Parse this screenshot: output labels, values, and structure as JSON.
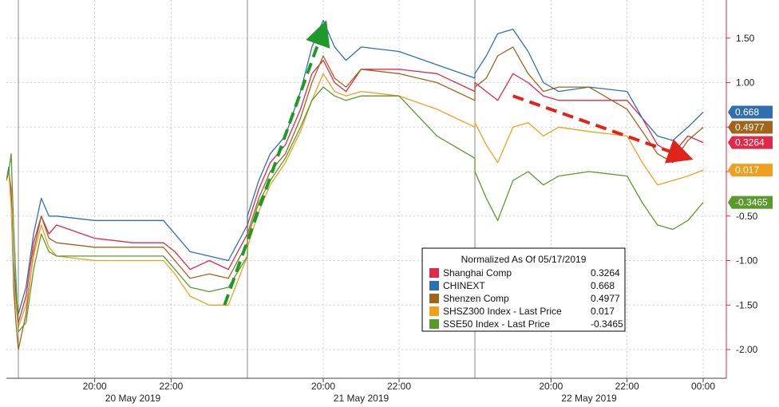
{
  "chart_data": {
    "type": "line",
    "title": "",
    "xlabel": "",
    "ylabel": "",
    "ylim": [
      -2.4,
      1.9
    ],
    "grid": true,
    "y_ticks": [
      1.5,
      1.0,
      0.5,
      0.0,
      -0.5,
      -1.0,
      -1.5,
      -2.0
    ],
    "y_tick_labels": [
      "1.50",
      "1.00",
      "",
      "",
      "-0.50",
      "-1.00",
      "-1.50",
      "-2.00"
    ],
    "x_time_ticks": [
      {
        "label": "20:00",
        "t": 11
      },
      {
        "label": "22:00",
        "t": 13
      },
      {
        "label": "20:00",
        "t": 35
      },
      {
        "label": "22:00",
        "t": 37
      },
      {
        "label": "20:00",
        "t": 59
      },
      {
        "label": "22:00",
        "t": 61
      },
      {
        "label": "00:00",
        "t": 63
      }
    ],
    "day_labels": [
      {
        "label": "20 May 2019",
        "t_start": 9.0,
        "t_end": 15.0
      },
      {
        "label": "21 May 2019",
        "t_start": 33.0,
        "t_end": 39.0
      },
      {
        "label": "22 May 2019",
        "t_start": 57.0,
        "t_end": 63.0
      }
    ],
    "day_separators": [
      9.0,
      15.0,
      33.0,
      39.0,
      57.0
    ],
    "legend": {
      "title": "Normalized As Of 05/17/2019",
      "position": "bottom-right",
      "entries": [
        {
          "name": "Shanghai Comp",
          "value": "0.3264"
        },
        {
          "name": "CHINEXT",
          "value": "0.668"
        },
        {
          "name": "Shenzen Comp",
          "value": "0.4977"
        },
        {
          "name": "SHSZ300 Index - Last Price",
          "value": "0.017"
        },
        {
          "name": "SSE50 Index - Last Price",
          "value": "-0.3465"
        }
      ]
    },
    "series": [
      {
        "name": "Shanghai Comp",
        "color": "#e0284a",
        "last_label": "0.3264",
        "points": [
          [
            8.0,
            -0.1
          ],
          [
            8.2,
            0.0
          ],
          [
            8.4,
            -0.2
          ],
          [
            8.6,
            -1.2
          ],
          [
            8.8,
            -1.5
          ],
          [
            9.0,
            -1.7
          ],
          [
            9.2,
            -1.4
          ],
          [
            9.4,
            -0.8
          ],
          [
            9.6,
            -0.5
          ],
          [
            9.8,
            -0.7
          ],
          [
            10.0,
            -0.6
          ],
          [
            11.0,
            -0.75
          ],
          [
            12.0,
            -0.8
          ],
          [
            12.8,
            -0.8
          ],
          [
            13.1,
            -0.9
          ],
          [
            13.5,
            -1.1
          ],
          [
            14.0,
            -1.0
          ],
          [
            14.5,
            -1.1
          ],
          [
            15.0,
            -0.7
          ],
          [
            33.0,
            -0.6
          ],
          [
            33.3,
            -0.2
          ],
          [
            33.6,
            0.1
          ],
          [
            34.0,
            0.3
          ],
          [
            34.4,
            0.7
          ],
          [
            34.7,
            1.1
          ],
          [
            35.0,
            1.25
          ],
          [
            35.3,
            1.0
          ],
          [
            35.6,
            0.9
          ],
          [
            36.0,
            1.15
          ],
          [
            37.0,
            1.15
          ],
          [
            38.0,
            1.1
          ],
          [
            39.0,
            0.9
          ],
          [
            57.0,
            1.0
          ],
          [
            57.3,
            0.9
          ],
          [
            57.6,
            0.8
          ],
          [
            58.0,
            1.1
          ],
          [
            58.4,
            1.0
          ],
          [
            58.8,
            0.85
          ],
          [
            59.2,
            0.8
          ],
          [
            60.0,
            0.8
          ],
          [
            61.0,
            0.8
          ],
          [
            61.4,
            0.6
          ],
          [
            61.8,
            0.3
          ],
          [
            62.2,
            0.2
          ],
          [
            62.6,
            0.4
          ],
          [
            63.0,
            0.3264
          ]
        ]
      },
      {
        "name": "CHINEXT",
        "color": "#2f6fb0",
        "last_label": "0.668",
        "points": [
          [
            8.0,
            -0.1
          ],
          [
            8.2,
            0.05
          ],
          [
            8.4,
            -0.3
          ],
          [
            8.6,
            -1.0
          ],
          [
            8.8,
            -1.4
          ],
          [
            9.0,
            -1.6
          ],
          [
            9.2,
            -1.3
          ],
          [
            9.4,
            -0.7
          ],
          [
            9.6,
            -0.3
          ],
          [
            9.8,
            -0.5
          ],
          [
            10.0,
            -0.5
          ],
          [
            11.0,
            -0.55
          ],
          [
            12.0,
            -0.55
          ],
          [
            12.8,
            -0.55
          ],
          [
            13.1,
            -0.7
          ],
          [
            13.5,
            -0.9
          ],
          [
            14.0,
            -0.95
          ],
          [
            14.5,
            -1.0
          ],
          [
            15.0,
            -0.6
          ],
          [
            33.0,
            -0.5
          ],
          [
            33.3,
            -0.1
          ],
          [
            33.6,
            0.2
          ],
          [
            34.0,
            0.4
          ],
          [
            34.4,
            0.9
          ],
          [
            34.7,
            1.4
          ],
          [
            35.0,
            1.7
          ],
          [
            35.3,
            1.4
          ],
          [
            35.6,
            1.25
          ],
          [
            36.0,
            1.4
          ],
          [
            37.0,
            1.35
          ],
          [
            38.0,
            1.2
          ],
          [
            39.0,
            1.05
          ],
          [
            57.0,
            1.1
          ],
          [
            57.3,
            1.3
          ],
          [
            57.6,
            1.55
          ],
          [
            58.0,
            1.6
          ],
          [
            58.4,
            1.35
          ],
          [
            58.8,
            1.0
          ],
          [
            59.2,
            0.9
          ],
          [
            60.0,
            0.95
          ],
          [
            61.0,
            0.9
          ],
          [
            61.4,
            0.6
          ],
          [
            61.8,
            0.4
          ],
          [
            62.2,
            0.35
          ],
          [
            62.6,
            0.5
          ],
          [
            63.0,
            0.668
          ]
        ]
      },
      {
        "name": "Shenzen Comp",
        "color": "#a0651a",
        "last_label": "0.4977",
        "points": [
          [
            8.0,
            -0.1
          ],
          [
            8.2,
            0.0
          ],
          [
            8.4,
            -0.3
          ],
          [
            8.6,
            -1.3
          ],
          [
            8.8,
            -1.7
          ],
          [
            9.0,
            -2.0
          ],
          [
            9.2,
            -1.6
          ],
          [
            9.4,
            -0.9
          ],
          [
            9.6,
            -0.5
          ],
          [
            9.8,
            -0.75
          ],
          [
            10.0,
            -0.8
          ],
          [
            11.0,
            -0.85
          ],
          [
            12.0,
            -0.85
          ],
          [
            12.8,
            -0.85
          ],
          [
            13.1,
            -1.0
          ],
          [
            13.5,
            -1.2
          ],
          [
            14.0,
            -1.15
          ],
          [
            14.5,
            -1.2
          ],
          [
            15.0,
            -0.8
          ],
          [
            33.0,
            -0.7
          ],
          [
            33.3,
            -0.3
          ],
          [
            33.6,
            0.0
          ],
          [
            34.0,
            0.2
          ],
          [
            34.4,
            0.6
          ],
          [
            34.7,
            1.0
          ],
          [
            35.0,
            1.3
          ],
          [
            35.3,
            1.05
          ],
          [
            35.6,
            0.95
          ],
          [
            36.0,
            1.15
          ],
          [
            37.0,
            1.1
          ],
          [
            38.0,
            1.0
          ],
          [
            39.0,
            0.8
          ],
          [
            57.0,
            0.95
          ],
          [
            57.3,
            1.05
          ],
          [
            57.6,
            1.3
          ],
          [
            58.0,
            1.4
          ],
          [
            58.4,
            1.1
          ],
          [
            58.8,
            0.9
          ],
          [
            59.2,
            0.95
          ],
          [
            60.0,
            0.95
          ],
          [
            61.0,
            0.7
          ],
          [
            61.4,
            0.45
          ],
          [
            61.8,
            0.2
          ],
          [
            62.2,
            0.1
          ],
          [
            62.6,
            0.35
          ],
          [
            63.0,
            0.4977
          ]
        ]
      },
      {
        "name": "SHSZ300 Index - Last Price",
        "color": "#f0a020",
        "last_label": "0.017",
        "points": [
          [
            8.0,
            -0.1
          ],
          [
            8.2,
            0.0
          ],
          [
            8.4,
            -0.4
          ],
          [
            8.6,
            -1.2
          ],
          [
            8.8,
            -1.5
          ],
          [
            9.0,
            -1.75
          ],
          [
            9.2,
            -1.5
          ],
          [
            9.4,
            -0.95
          ],
          [
            9.6,
            -0.6
          ],
          [
            9.8,
            -0.85
          ],
          [
            10.0,
            -0.95
          ],
          [
            11.0,
            -1.0
          ],
          [
            12.0,
            -1.0
          ],
          [
            12.8,
            -1.0
          ],
          [
            13.1,
            -1.15
          ],
          [
            13.5,
            -1.4
          ],
          [
            14.0,
            -1.5
          ],
          [
            14.5,
            -1.5
          ],
          [
            15.0,
            -0.95
          ],
          [
            33.0,
            -0.85
          ],
          [
            33.3,
            -0.45
          ],
          [
            33.6,
            -0.15
          ],
          [
            34.0,
            0.1
          ],
          [
            34.4,
            0.45
          ],
          [
            34.7,
            0.8
          ],
          [
            35.0,
            1.1
          ],
          [
            35.3,
            0.9
          ],
          [
            35.6,
            0.85
          ],
          [
            36.0,
            0.9
          ],
          [
            37.0,
            0.85
          ],
          [
            38.0,
            0.7
          ],
          [
            39.0,
            0.5
          ],
          [
            57.0,
            0.55
          ],
          [
            57.3,
            0.3
          ],
          [
            57.6,
            0.1
          ],
          [
            58.0,
            0.5
          ],
          [
            58.4,
            0.55
          ],
          [
            58.8,
            0.4
          ],
          [
            59.2,
            0.5
          ],
          [
            60.0,
            0.45
          ],
          [
            61.0,
            0.4
          ],
          [
            61.4,
            0.1
          ],
          [
            61.8,
            -0.15
          ],
          [
            62.2,
            -0.1
          ],
          [
            62.6,
            -0.05
          ],
          [
            63.0,
            0.017
          ]
        ]
      },
      {
        "name": "SSE50 Index - Last Price",
        "color": "#5a9a2a",
        "last_label": "-0.3465",
        "points": [
          [
            8.0,
            -0.1
          ],
          [
            8.2,
            0.0
          ],
          [
            8.4,
            0.2
          ],
          [
            8.6,
            -0.6
          ],
          [
            8.8,
            -1.2
          ],
          [
            9.0,
            -1.8
          ],
          [
            9.2,
            -1.7
          ],
          [
            9.4,
            -1.1
          ],
          [
            9.6,
            -0.7
          ],
          [
            9.8,
            -0.9
          ],
          [
            10.0,
            -0.95
          ],
          [
            11.0,
            -0.95
          ],
          [
            12.0,
            -0.95
          ],
          [
            12.8,
            -0.95
          ],
          [
            13.1,
            -1.1
          ],
          [
            13.5,
            -1.3
          ],
          [
            14.0,
            -1.35
          ],
          [
            14.5,
            -1.3
          ],
          [
            15.0,
            -0.95
          ],
          [
            33.0,
            -0.75
          ],
          [
            33.3,
            -0.35
          ],
          [
            33.6,
            -0.1
          ],
          [
            34.0,
            0.15
          ],
          [
            34.4,
            0.5
          ],
          [
            34.7,
            0.8
          ],
          [
            35.0,
            0.95
          ],
          [
            35.3,
            0.85
          ],
          [
            35.6,
            0.8
          ],
          [
            36.0,
            0.85
          ],
          [
            37.0,
            0.85
          ],
          [
            38.0,
            0.4
          ],
          [
            39.0,
            0.15
          ],
          [
            57.0,
            0.0
          ],
          [
            57.3,
            -0.3
          ],
          [
            57.6,
            -0.55
          ],
          [
            58.0,
            -0.1
          ],
          [
            58.4,
            0.0
          ],
          [
            58.8,
            -0.15
          ],
          [
            59.2,
            -0.05
          ],
          [
            60.0,
            0.0
          ],
          [
            61.0,
            -0.05
          ],
          [
            61.4,
            -0.35
          ],
          [
            61.8,
            -0.6
          ],
          [
            62.2,
            -0.65
          ],
          [
            62.6,
            -0.55
          ],
          [
            63.0,
            -0.3465
          ]
        ]
      }
    ],
    "annotations": [
      {
        "type": "arrow",
        "color": "#1f9a2a",
        "style": "dashed",
        "from": [
          14.4,
          -1.5
        ],
        "to": [
          35.0,
          1.6
        ]
      },
      {
        "type": "arrow",
        "color": "#e0241a",
        "style": "dashed",
        "from": [
          58.0,
          0.85
        ],
        "to": [
          62.5,
          0.17
        ]
      }
    ]
  }
}
